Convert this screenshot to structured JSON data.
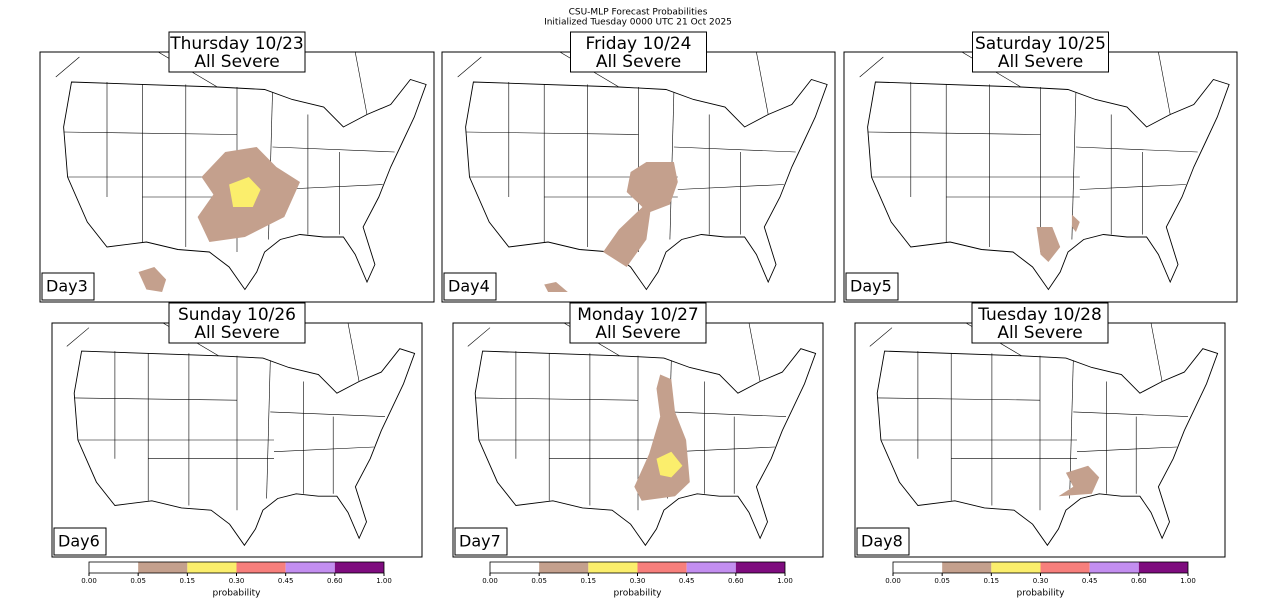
{
  "title": "CSU-MLP Forecast Probabilities",
  "subtitle": "Initialized Tuesday 0000 UTC 21 Oct 2025",
  "panels": [
    {
      "date": "Thursday 10/23",
      "label": "All Severe",
      "day": "Day3"
    },
    {
      "date": "Friday 10/24",
      "label": "All Severe",
      "day": "Day4"
    },
    {
      "date": "Saturday 10/25",
      "label": "All Severe",
      "day": "Day5"
    },
    {
      "date": "Sunday 10/26",
      "label": "All Severe",
      "day": "Day6"
    },
    {
      "date": "Monday 10/27",
      "label": "All Severe",
      "day": "Day7"
    },
    {
      "date": "Tuesday 10/28",
      "label": "All Severe",
      "day": "Day8"
    }
  ],
  "colorbar": {
    "label": "probability",
    "ticks": [
      "0.00",
      "0.05",
      "0.15",
      "0.30",
      "0.45",
      "0.60",
      "1.00"
    ],
    "colors": [
      "#ffffff",
      "#c4a08d",
      "#fbee6c",
      "#f77f7c",
      "#c38ef0",
      "#7e0c7e"
    ]
  }
}
